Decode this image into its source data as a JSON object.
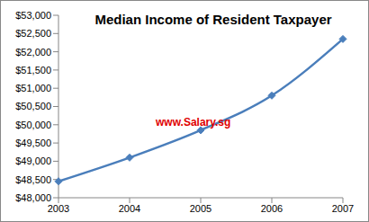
{
  "chart_data": {
    "type": "line",
    "title": "Median Income of Resident Taxpayer",
    "annotations": [
      "www.Salary.sg"
    ],
    "categories": [
      "2003",
      "2004",
      "2005",
      "2006",
      "2007"
    ],
    "series": [
      {
        "name": "Median Income of Resident Taxpayer",
        "color": "#4a7ebb",
        "marker": "diamond",
        "values": [
          48450,
          49100,
          49850,
          50800,
          52350
        ]
      }
    ],
    "ylim": [
      48000,
      53000
    ],
    "yticks": [
      {
        "value": 48000,
        "label": "$48,000"
      },
      {
        "value": 48500,
        "label": "$48,500"
      },
      {
        "value": 49000,
        "label": "$49,000"
      },
      {
        "value": 49500,
        "label": "$49,500"
      },
      {
        "value": 50000,
        "label": "$50,000"
      },
      {
        "value": 50500,
        "label": "$50,500"
      },
      {
        "value": 51000,
        "label": "$51,000"
      },
      {
        "value": 51500,
        "label": "$51,500"
      },
      {
        "value": 52000,
        "label": "$52,000"
      },
      {
        "value": 52500,
        "label": "$52,500"
      },
      {
        "value": 53000,
        "label": "$53,000"
      }
    ],
    "grid": false
  }
}
